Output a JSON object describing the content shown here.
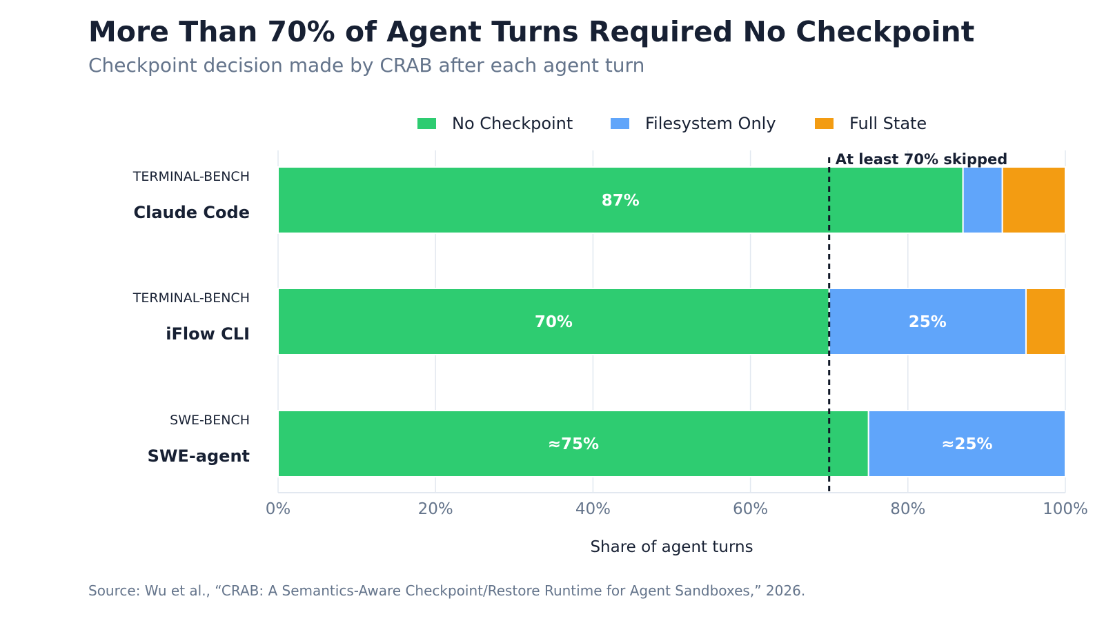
{
  "title": "More Than 70% of Agent Turns Required No Checkpoint",
  "subtitle": "Checkpoint decision made by CRAB after each agent turn",
  "source": "Source: Wu et al., “CRAB: A Semantics-Aware Checkpoint/Restore Runtime for Agent Sandboxes,” 2026.",
  "chart_data": {
    "type": "bar",
    "orientation": "horizontal",
    "stacked": true,
    "categories": [
      {
        "group": "TERMINAL-BENCH",
        "name": "Claude Code"
      },
      {
        "group": "TERMINAL-BENCH",
        "name": "iFlow CLI"
      },
      {
        "group": "SWE-BENCH",
        "name": "SWE-agent"
      }
    ],
    "series": [
      {
        "name": "No Checkpoint",
        "color": "#2ecc71",
        "values": [
          87,
          70,
          75
        ],
        "labels": [
          "87%",
          "70%",
          "≈75%"
        ]
      },
      {
        "name": "Filesystem Only",
        "color": "#60a5fa",
        "values": [
          5,
          25,
          25
        ],
        "labels": [
          "",
          "25%",
          "≈25%"
        ]
      },
      {
        "name": "Full State",
        "color": "#f39c12",
        "values": [
          8,
          5,
          0
        ],
        "labels": [
          "",
          "",
          ""
        ]
      }
    ],
    "xlabel": "Share of agent turns",
    "xlim": [
      0,
      100
    ],
    "xticks": [
      0,
      20,
      40,
      60,
      80,
      100
    ],
    "xtick_labels": [
      "0%",
      "20%",
      "40%",
      "60%",
      "80%",
      "100%"
    ],
    "reference_line": {
      "value": 70,
      "label": "At least 70% skipped"
    },
    "grid": true,
    "legend_position": "top"
  }
}
